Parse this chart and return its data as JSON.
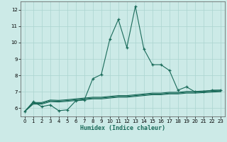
{
  "title": "",
  "xlabel": "Humidex (Indice chaleur)",
  "background_color": "#cceae7",
  "grid_color": "#aad4d0",
  "line_color": "#1a6b5a",
  "xlim": [
    -0.5,
    23.5
  ],
  "ylim": [
    5.5,
    12.5
  ],
  "yticks": [
    6,
    7,
    8,
    9,
    10,
    11,
    12
  ],
  "xticks": [
    0,
    1,
    2,
    3,
    4,
    5,
    6,
    7,
    8,
    9,
    10,
    11,
    12,
    13,
    14,
    15,
    16,
    17,
    18,
    19,
    20,
    21,
    22,
    23
  ],
  "line1_x": [
    0,
    1,
    2,
    3,
    4,
    5,
    6,
    7,
    8,
    9,
    10,
    11,
    12,
    13,
    14,
    15,
    16,
    17,
    18,
    19,
    20,
    21,
    22,
    23
  ],
  "line1_y": [
    5.8,
    6.4,
    6.1,
    6.2,
    5.85,
    5.9,
    6.45,
    6.5,
    7.8,
    8.05,
    10.2,
    11.4,
    9.7,
    12.2,
    9.6,
    8.65,
    8.65,
    8.3,
    7.1,
    7.3,
    7.0,
    7.0,
    7.1,
    7.1
  ],
  "line2_x": [
    0,
    1,
    2,
    3,
    4,
    5,
    6,
    7,
    8,
    9,
    10,
    11,
    12,
    13,
    14,
    15,
    16,
    17,
    18,
    19,
    20,
    21,
    22,
    23
  ],
  "line2_y": [
    5.8,
    6.35,
    6.35,
    6.5,
    6.48,
    6.52,
    6.57,
    6.62,
    6.67,
    6.67,
    6.72,
    6.77,
    6.77,
    6.82,
    6.87,
    6.92,
    6.92,
    6.97,
    6.97,
    7.02,
    7.02,
    7.05,
    7.08,
    7.1
  ],
  "line3_x": [
    0,
    1,
    2,
    3,
    4,
    5,
    6,
    7,
    8,
    9,
    10,
    11,
    12,
    13,
    14,
    15,
    16,
    17,
    18,
    19,
    20,
    21,
    22,
    23
  ],
  "line3_y": [
    5.8,
    6.3,
    6.3,
    6.45,
    6.43,
    6.47,
    6.52,
    6.57,
    6.62,
    6.62,
    6.67,
    6.72,
    6.72,
    6.77,
    6.82,
    6.87,
    6.87,
    6.92,
    6.92,
    6.97,
    6.97,
    7.0,
    7.03,
    7.05
  ],
  "line4_x": [
    0,
    1,
    2,
    3,
    4,
    5,
    6,
    7,
    8,
    9,
    10,
    11,
    12,
    13,
    14,
    15,
    16,
    17,
    18,
    19,
    20,
    21,
    22,
    23
  ],
  "line4_y": [
    5.8,
    6.25,
    6.25,
    6.4,
    6.38,
    6.42,
    6.47,
    6.52,
    6.57,
    6.57,
    6.62,
    6.67,
    6.67,
    6.72,
    6.77,
    6.82,
    6.82,
    6.87,
    6.87,
    6.92,
    6.92,
    6.95,
    6.98,
    7.0
  ]
}
